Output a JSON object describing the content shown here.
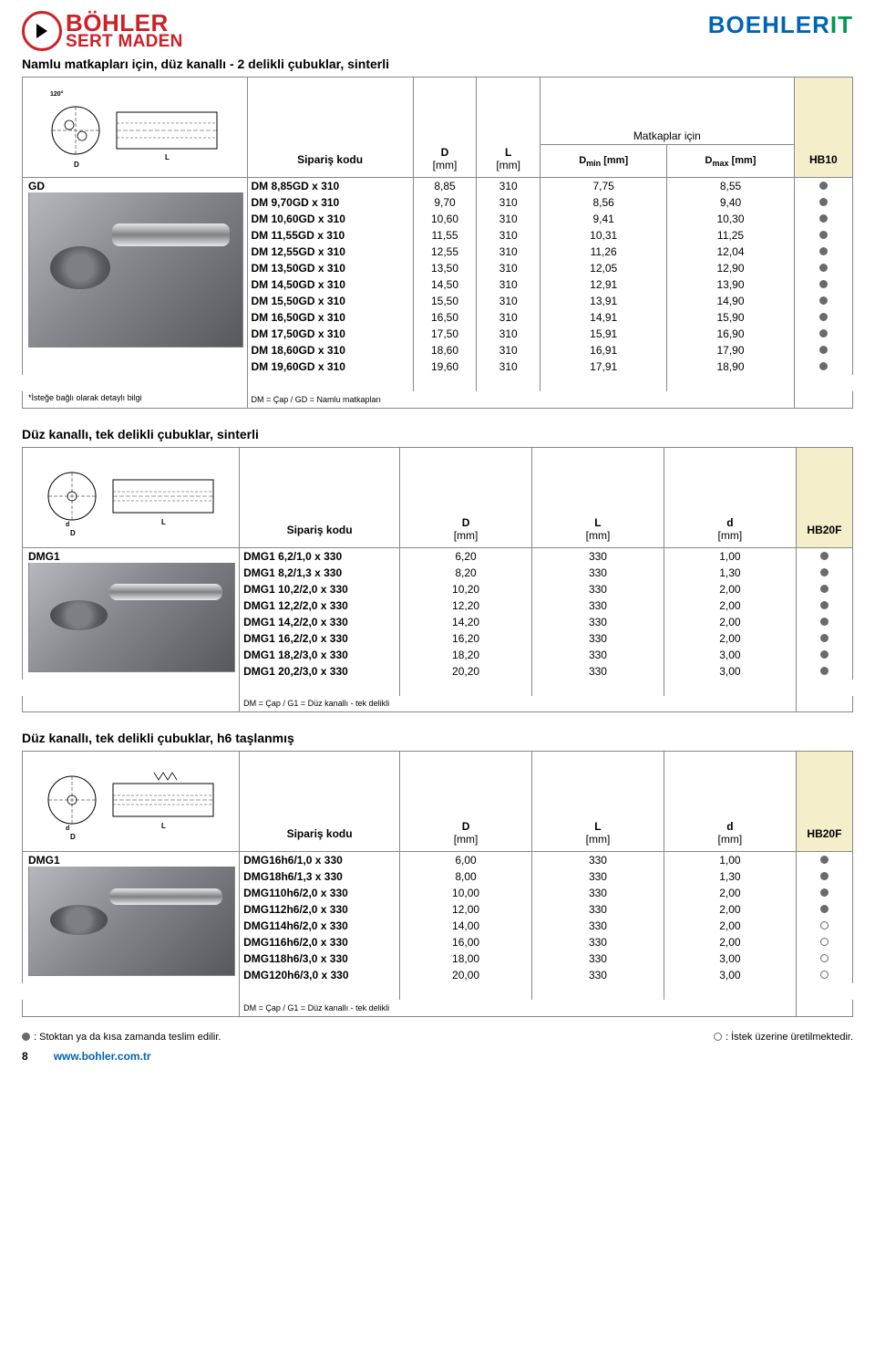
{
  "header": {
    "brand_line1": "BÖHLER",
    "brand_line2": "SERT MADEN",
    "brand_right_pre": "BOEHLER",
    "brand_right_suf": "IT"
  },
  "section1": {
    "title": "Namlu matkapları için, düz kanallı - 2 delikli çubuklar, sinterli",
    "group_code": "GD",
    "columns": {
      "order": "Sipariş kodu",
      "D": "D",
      "L": "L",
      "Dmin": "D",
      "Dmax": "D",
      "mm": "[mm]",
      "min_sub": "min",
      "max_sub": "max",
      "span_label": "Matkaplar için",
      "grade": "HB10"
    },
    "rows": [
      {
        "name": "DM  8,85GD x 310",
        "d": "8,85",
        "l": "310",
        "dmin": "7,75",
        "dmax": "8,55",
        "dot": "full"
      },
      {
        "name": "DM  9,70GD x 310",
        "d": "9,70",
        "l": "310",
        "dmin": "8,56",
        "dmax": "9,40",
        "dot": "full"
      },
      {
        "name": "DM 10,60GD x 310",
        "d": "10,60",
        "l": "310",
        "dmin": "9,41",
        "dmax": "10,30",
        "dot": "full"
      },
      {
        "name": "DM 11,55GD x 310",
        "d": "11,55",
        "l": "310",
        "dmin": "10,31",
        "dmax": "11,25",
        "dot": "full"
      },
      {
        "name": "DM 12,55GD x 310",
        "d": "12,55",
        "l": "310",
        "dmin": "11,26",
        "dmax": "12,04",
        "dot": "full"
      },
      {
        "name": "DM 13,50GD x 310",
        "d": "13,50",
        "l": "310",
        "dmin": "12,05",
        "dmax": "12,90",
        "dot": "full"
      },
      {
        "name": "DM 14,50GD x 310",
        "d": "14,50",
        "l": "310",
        "dmin": "12,91",
        "dmax": "13,90",
        "dot": "full"
      },
      {
        "name": "DM 15,50GD x 310",
        "d": "15,50",
        "l": "310",
        "dmin": "13,91",
        "dmax": "14,90",
        "dot": "full"
      },
      {
        "name": "DM 16,50GD x 310",
        "d": "16,50",
        "l": "310",
        "dmin": "14,91",
        "dmax": "15,90",
        "dot": "full"
      },
      {
        "name": "DM 17,50GD x 310",
        "d": "17,50",
        "l": "310",
        "dmin": "15,91",
        "dmax": "16,90",
        "dot": "full"
      },
      {
        "name": "DM 18,60GD x 310",
        "d": "18,60",
        "l": "310",
        "dmin": "16,91",
        "dmax": "17,90",
        "dot": "full"
      },
      {
        "name": "DM 19,60GD x 310",
        "d": "19,60",
        "l": "310",
        "dmin": "17,91",
        "dmax": "18,90",
        "dot": "full"
      }
    ],
    "note_inline": "DM = Çap / GD = Namlu matkapları",
    "footnote": "*İsteğe bağlı olarak detaylı bilgi"
  },
  "section2": {
    "title": "Düz kanallı, tek delikli çubuklar, sinterli",
    "group_code": "DMG1",
    "columns": {
      "order": "Sipariş kodu",
      "D": "D",
      "L": "L",
      "d": "d",
      "mm": "[mm]",
      "grade": "HB20F"
    },
    "rows": [
      {
        "name": "DMG1  6,2/1,0 x 330",
        "D": "6,20",
        "L": "330",
        "d": "1,00",
        "dot": "full"
      },
      {
        "name": "DMG1  8,2/1,3 x 330",
        "D": "8,20",
        "L": "330",
        "d": "1,30",
        "dot": "full"
      },
      {
        "name": "DMG1 10,2/2,0 x 330",
        "D": "10,20",
        "L": "330",
        "d": "2,00",
        "dot": "full"
      },
      {
        "name": "DMG1 12,2/2,0 x 330",
        "D": "12,20",
        "L": "330",
        "d": "2,00",
        "dot": "full"
      },
      {
        "name": "DMG1 14,2/2,0 x 330",
        "D": "14,20",
        "L": "330",
        "d": "2,00",
        "dot": "full"
      },
      {
        "name": "DMG1 16,2/2,0 x 330",
        "D": "16,20",
        "L": "330",
        "d": "2,00",
        "dot": "full"
      },
      {
        "name": "DMG1 18,2/3,0 x 330",
        "D": "18,20",
        "L": "330",
        "d": "3,00",
        "dot": "full"
      },
      {
        "name": "DMG1 20,2/3,0 x 330",
        "D": "20,20",
        "L": "330",
        "d": "3,00",
        "dot": "full"
      }
    ],
    "note_inline": "DM = Çap / G1 = Düz kanallı - tek delikli"
  },
  "section3": {
    "title": "Düz kanallı, tek delikli çubuklar, h6 taşlanmış",
    "group_code": "DMG1",
    "columns": {
      "order": "Sipariş kodu",
      "D": "D",
      "L": "L",
      "d": "d",
      "mm": "[mm]",
      "grade": "HB20F"
    },
    "rows": [
      {
        "name": "DMG16h6/1,0 x 330",
        "D": "6,00",
        "L": "330",
        "d": "1,00",
        "dot": "full"
      },
      {
        "name": "DMG18h6/1,3 x 330",
        "D": "8,00",
        "L": "330",
        "d": "1,30",
        "dot": "full"
      },
      {
        "name": "DMG110h6/2,0 x 330",
        "D": "10,00",
        "L": "330",
        "d": "2,00",
        "dot": "full"
      },
      {
        "name": "DMG112h6/2,0 x 330",
        "D": "12,00",
        "L": "330",
        "d": "2,00",
        "dot": "full"
      },
      {
        "name": "DMG114h6/2,0 x 330",
        "D": "14,00",
        "L": "330",
        "d": "2,00",
        "dot": "empty"
      },
      {
        "name": "DMG116h6/2,0 x 330",
        "D": "16,00",
        "L": "330",
        "d": "2,00",
        "dot": "empty"
      },
      {
        "name": "DMG118h6/3,0 x 330",
        "D": "18,00",
        "L": "330",
        "d": "3,00",
        "dot": "empty"
      },
      {
        "name": "DMG120h6/3,0 x 330",
        "D": "20,00",
        "L": "330",
        "d": "3,00",
        "dot": "empty"
      }
    ],
    "note_inline": "DM = Çap / G1 = Düz kanallı - tek delikli"
  },
  "footer": {
    "full_legend": "Stoktan ya da kısa zamanda teslim edilir.",
    "empty_legend": "İstek üzerine üretilmektedir.",
    "page": "8",
    "url": "www.bohler.com.tr"
  },
  "style": {
    "accent_red": "#cd2027",
    "brand_blue": "#0064b4",
    "brand_green": "#009a4e",
    "grade_bg": "#f5eeca",
    "dot_color": "#6a6a6a",
    "border_color": "#888888"
  }
}
